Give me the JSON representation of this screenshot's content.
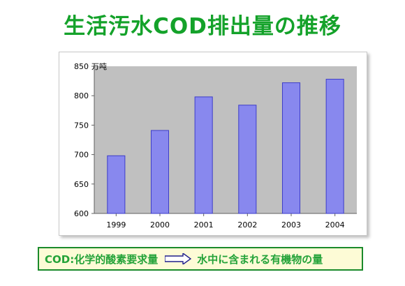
{
  "slide": {
    "title": "生活汚水COD排出量の推移"
  },
  "note": {
    "left": "COD:化学的酸素要求量",
    "right": "水中に含まれる有機物の量"
  },
  "colors": {
    "title": "#14a22a",
    "bar": "#8888ee",
    "bar_edge": "#3d3dc8",
    "plot_bg": "#c0c0c0",
    "note_border": "#1b8a2b",
    "note_bg": "#fdfbd6"
  },
  "chart_data": {
    "type": "bar",
    "categories": [
      "1999",
      "2000",
      "2001",
      "2002",
      "2003",
      "2004"
    ],
    "values": [
      698,
      741,
      798,
      784,
      822,
      828
    ],
    "ylim": [
      600,
      850
    ],
    "yticks": [
      600,
      650,
      700,
      750,
      800,
      850
    ],
    "unit_label": "万吨",
    "grid": false,
    "legend": "none"
  }
}
